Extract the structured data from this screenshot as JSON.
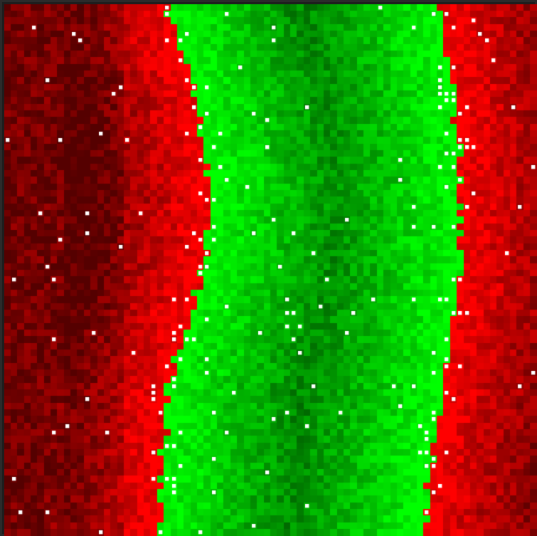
{
  "board": {
    "grid_cols": 80,
    "grid_rows": 80,
    "seed": 1187,
    "palette": {
      "red_bright": "#ff0000",
      "red_dark": "#3a0000",
      "green_bright": "#00ff00",
      "green_dark": "#003a00",
      "marker": "#ffffff",
      "frame": "#2b2b2b"
    },
    "regions": [
      {
        "name": "left-red-territory",
        "color": "red"
      },
      {
        "name": "center-green-territory",
        "color": "green"
      },
      {
        "name": "right-red-territory",
        "color": "red"
      }
    ],
    "marker_density": 0.035
  }
}
